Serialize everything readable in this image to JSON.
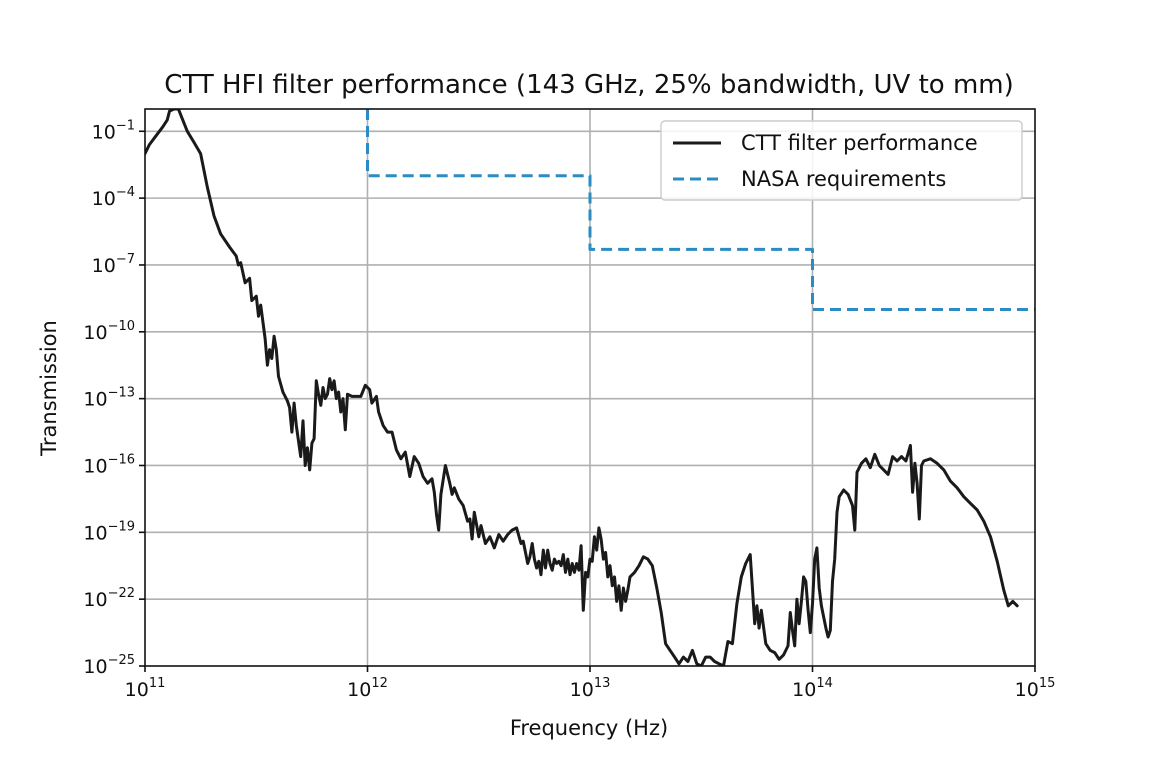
{
  "chart_data": {
    "type": "line",
    "title": "CTT HFI filter performance (143 GHz, 25% bandwidth, UV to mm)",
    "xlabel": "Frequency (Hz)",
    "ylabel": "Transmission",
    "xscale": "log",
    "yscale": "log",
    "xlim_exp": [
      11,
      15
    ],
    "ylim_exp": [
      -25,
      0
    ],
    "grid": true,
    "legend_position": "top-right",
    "x_ticks": [
      {
        "base": "10",
        "exp": "11",
        "value_exp": 11
      },
      {
        "base": "10",
        "exp": "12",
        "value_exp": 12
      },
      {
        "base": "10",
        "exp": "13",
        "value_exp": 13
      },
      {
        "base": "10",
        "exp": "14",
        "value_exp": 14
      },
      {
        "base": "10",
        "exp": "15",
        "value_exp": 15
      }
    ],
    "y_ticks": [
      {
        "base": "10",
        "exp": "−1",
        "value_exp": -1
      },
      {
        "base": "10",
        "exp": "−4",
        "value_exp": -4
      },
      {
        "base": "10",
        "exp": "−7",
        "value_exp": -7
      },
      {
        "base": "10",
        "exp": "−10",
        "value_exp": -10
      },
      {
        "base": "10",
        "exp": "−13",
        "value_exp": -13
      },
      {
        "base": "10",
        "exp": "−16",
        "value_exp": -16
      },
      {
        "base": "10",
        "exp": "−19",
        "value_exp": -19
      },
      {
        "base": "10",
        "exp": "−22",
        "value_exp": -22
      },
      {
        "base": "10",
        "exp": "−25",
        "value_exp": -25
      }
    ],
    "series": [
      {
        "name": "CTT filter performance",
        "color": "#1a1a1a",
        "style": "solid",
        "points_log10": [
          [
            11.0,
            -2.0
          ],
          [
            11.02,
            -1.6
          ],
          [
            11.05,
            -1.2
          ],
          [
            11.08,
            -0.8
          ],
          [
            11.1,
            -0.5
          ],
          [
            11.11,
            -0.1
          ],
          [
            11.13,
            0.0
          ],
          [
            11.15,
            0.0
          ],
          [
            11.17,
            -0.5
          ],
          [
            11.19,
            -1.0
          ],
          [
            11.22,
            -1.5
          ],
          [
            11.25,
            -2.0
          ],
          [
            11.28,
            -3.5
          ],
          [
            11.31,
            -4.8
          ],
          [
            11.34,
            -5.6
          ],
          [
            11.38,
            -6.2
          ],
          [
            11.41,
            -6.6
          ],
          [
            11.42,
            -7.0
          ],
          [
            11.43,
            -6.9
          ],
          [
            11.45,
            -7.8
          ],
          [
            11.47,
            -7.6
          ],
          [
            11.48,
            -8.6
          ],
          [
            11.5,
            -8.4
          ],
          [
            11.51,
            -9.3
          ],
          [
            11.52,
            -8.8
          ],
          [
            11.54,
            -10.3
          ],
          [
            11.55,
            -11.5
          ],
          [
            11.56,
            -10.8
          ],
          [
            11.57,
            -11.2
          ],
          [
            11.58,
            -10.2
          ],
          [
            11.59,
            -10.8
          ],
          [
            11.6,
            -12.0
          ],
          [
            11.62,
            -12.7
          ],
          [
            11.64,
            -13.1
          ],
          [
            11.65,
            -13.4
          ],
          [
            11.66,
            -14.5
          ],
          [
            11.67,
            -13.2
          ],
          [
            11.68,
            -14.2
          ],
          [
            11.7,
            -15.6
          ],
          [
            11.71,
            -14.0
          ],
          [
            11.72,
            -16.0
          ],
          [
            11.73,
            -15.2
          ],
          [
            11.74,
            -16.2
          ],
          [
            11.75,
            -15.0
          ],
          [
            11.76,
            -14.8
          ],
          [
            11.77,
            -12.2
          ],
          [
            11.78,
            -12.8
          ],
          [
            11.79,
            -13.3
          ],
          [
            11.8,
            -12.5
          ],
          [
            11.81,
            -13.0
          ],
          [
            11.82,
            -12.8
          ],
          [
            11.83,
            -12.1
          ],
          [
            11.84,
            -12.6
          ],
          [
            11.85,
            -12.2
          ],
          [
            11.86,
            -13.0
          ],
          [
            11.87,
            -12.7
          ],
          [
            11.88,
            -13.6
          ],
          [
            11.89,
            -13.0
          ],
          [
            11.9,
            -14.4
          ],
          [
            11.91,
            -12.8
          ],
          [
            11.93,
            -12.9
          ],
          [
            11.95,
            -12.9
          ],
          [
            11.97,
            -12.9
          ],
          [
            11.99,
            -12.4
          ],
          [
            12.01,
            -12.6
          ],
          [
            12.02,
            -13.2
          ],
          [
            12.04,
            -12.9
          ],
          [
            12.05,
            -13.6
          ],
          [
            12.07,
            -14.2
          ],
          [
            12.09,
            -14.5
          ],
          [
            12.11,
            -14.5
          ],
          [
            12.13,
            -15.3
          ],
          [
            12.15,
            -15.7
          ],
          [
            12.17,
            -15.4
          ],
          [
            12.19,
            -16.5
          ],
          [
            12.21,
            -15.6
          ],
          [
            12.23,
            -15.9
          ],
          [
            12.25,
            -16.5
          ],
          [
            12.27,
            -16.8
          ],
          [
            12.29,
            -16.6
          ],
          [
            12.3,
            -17.2
          ],
          [
            12.31,
            -18.2
          ],
          [
            12.32,
            -18.9
          ],
          [
            12.33,
            -17.3
          ],
          [
            12.35,
            -16.0
          ],
          [
            12.37,
            -16.8
          ],
          [
            12.38,
            -17.3
          ],
          [
            12.39,
            -17.0
          ],
          [
            12.41,
            -17.5
          ],
          [
            12.43,
            -17.8
          ],
          [
            12.45,
            -18.5
          ],
          [
            12.46,
            -18.4
          ],
          [
            12.47,
            -19.3
          ],
          [
            12.48,
            -18.1
          ],
          [
            12.5,
            -19.2
          ],
          [
            12.51,
            -18.7
          ],
          [
            12.53,
            -19.5
          ],
          [
            12.55,
            -19.2
          ],
          [
            12.57,
            -19.7
          ],
          [
            12.59,
            -19.1
          ],
          [
            12.61,
            -19.4
          ],
          [
            12.63,
            -19.1
          ],
          [
            12.65,
            -18.9
          ],
          [
            12.67,
            -18.8
          ],
          [
            12.69,
            -19.5
          ],
          [
            12.7,
            -19.4
          ],
          [
            12.71,
            -19.9
          ],
          [
            12.72,
            -20.4
          ],
          [
            12.73,
            -20.1
          ],
          [
            12.74,
            -19.5
          ],
          [
            12.75,
            -20.2
          ],
          [
            12.76,
            -20.6
          ],
          [
            12.77,
            -20.3
          ],
          [
            12.78,
            -20.9
          ],
          [
            12.79,
            -19.8
          ],
          [
            12.8,
            -20.6
          ],
          [
            12.81,
            -19.8
          ],
          [
            12.82,
            -20.4
          ],
          [
            12.83,
            -20.7
          ],
          [
            12.84,
            -20.2
          ],
          [
            12.85,
            -20.4
          ],
          [
            12.86,
            -20.3
          ],
          [
            12.87,
            -20.5
          ],
          [
            12.88,
            -20.0
          ],
          [
            12.89,
            -20.8
          ],
          [
            12.9,
            -20.2
          ],
          [
            12.91,
            -20.9
          ],
          [
            12.92,
            -20.4
          ],
          [
            12.93,
            -20.8
          ],
          [
            12.94,
            -20.4
          ],
          [
            12.95,
            -20.7
          ],
          [
            12.96,
            -19.6
          ],
          [
            12.97,
            -22.5
          ],
          [
            12.98,
            -20.8
          ],
          [
            12.99,
            -21.0
          ],
          [
            13.0,
            -20.2
          ],
          [
            13.01,
            -20.3
          ],
          [
            13.02,
            -19.2
          ],
          [
            13.03,
            -19.8
          ],
          [
            13.04,
            -18.8
          ],
          [
            13.05,
            -19.3
          ],
          [
            13.06,
            -20.2
          ],
          [
            13.07,
            -19.9
          ],
          [
            13.08,
            -21.0
          ],
          [
            13.09,
            -20.5
          ],
          [
            13.1,
            -21.4
          ],
          [
            13.11,
            -21.0
          ],
          [
            13.12,
            -22.1
          ],
          [
            13.13,
            -21.4
          ],
          [
            13.14,
            -22.5
          ],
          [
            13.15,
            -21.5
          ],
          [
            13.16,
            -22.1
          ],
          [
            13.17,
            -21.6
          ],
          [
            13.18,
            -21.0
          ],
          [
            13.2,
            -20.8
          ],
          [
            13.22,
            -20.5
          ],
          [
            13.24,
            -20.1
          ],
          [
            13.26,
            -20.2
          ],
          [
            13.28,
            -20.5
          ],
          [
            13.3,
            -21.5
          ],
          [
            13.32,
            -22.6
          ],
          [
            13.34,
            -24.0
          ],
          [
            13.36,
            -24.3
          ],
          [
            13.38,
            -24.6
          ],
          [
            13.4,
            -24.9
          ],
          [
            13.42,
            -24.6
          ],
          [
            13.44,
            -24.8
          ],
          [
            13.46,
            -24.3
          ],
          [
            13.48,
            -24.9
          ],
          [
            13.5,
            -25.0
          ],
          [
            13.52,
            -24.6
          ],
          [
            13.54,
            -24.6
          ],
          [
            13.56,
            -24.8
          ],
          [
            13.58,
            -24.9
          ],
          [
            13.6,
            -25.0
          ],
          [
            13.62,
            -23.9
          ],
          [
            13.64,
            -24.0
          ],
          [
            13.66,
            -22.2
          ],
          [
            13.68,
            -21.0
          ],
          [
            13.7,
            -20.4
          ],
          [
            13.72,
            -20.0
          ],
          [
            13.73,
            -21.5
          ],
          [
            13.74,
            -23.1
          ],
          [
            13.75,
            -22.3
          ],
          [
            13.76,
            -23.3
          ],
          [
            13.77,
            -22.5
          ],
          [
            13.79,
            -24.0
          ],
          [
            13.81,
            -24.3
          ],
          [
            13.83,
            -24.4
          ],
          [
            13.85,
            -24.7
          ],
          [
            13.87,
            -24.5
          ],
          [
            13.89,
            -24.1
          ],
          [
            13.9,
            -22.6
          ],
          [
            13.91,
            -23.4
          ],
          [
            13.92,
            -24.1
          ],
          [
            13.93,
            -22.0
          ],
          [
            13.94,
            -23.1
          ],
          [
            13.95,
            -22.1
          ],
          [
            13.96,
            -21.0
          ],
          [
            13.97,
            -21.2
          ],
          [
            13.98,
            -22.5
          ],
          [
            13.99,
            -23.5
          ],
          [
            14.0,
            -22.2
          ],
          [
            14.01,
            -20.2
          ],
          [
            14.02,
            -19.7
          ],
          [
            14.03,
            -21.5
          ],
          [
            14.04,
            -22.3
          ],
          [
            14.06,
            -23.3
          ],
          [
            14.07,
            -23.7
          ],
          [
            14.08,
            -23.4
          ],
          [
            14.09,
            -21.2
          ],
          [
            14.1,
            -20.2
          ],
          [
            14.11,
            -18.1
          ],
          [
            14.12,
            -17.4
          ],
          [
            14.14,
            -17.1
          ],
          [
            14.16,
            -17.3
          ],
          [
            14.18,
            -17.8
          ],
          [
            14.19,
            -18.9
          ],
          [
            14.2,
            -16.3
          ],
          [
            14.22,
            -15.9
          ],
          [
            14.24,
            -15.7
          ],
          [
            14.26,
            -16.1
          ],
          [
            14.28,
            -15.5
          ],
          [
            14.3,
            -16.0
          ],
          [
            14.32,
            -16.2
          ],
          [
            14.34,
            -16.4
          ],
          [
            14.36,
            -15.6
          ],
          [
            14.38,
            -15.8
          ],
          [
            14.4,
            -15.6
          ],
          [
            14.42,
            -15.8
          ],
          [
            14.44,
            -15.1
          ],
          [
            14.45,
            -17.2
          ],
          [
            14.46,
            -15.9
          ],
          [
            14.47,
            -16.8
          ],
          [
            14.48,
            -18.4
          ],
          [
            14.49,
            -16.0
          ],
          [
            14.5,
            -15.8
          ],
          [
            14.53,
            -15.7
          ],
          [
            14.56,
            -15.9
          ],
          [
            14.59,
            -16.2
          ],
          [
            14.62,
            -16.7
          ],
          [
            14.65,
            -17.0
          ],
          [
            14.68,
            -17.4
          ],
          [
            14.71,
            -17.7
          ],
          [
            14.74,
            -18.0
          ],
          [
            14.77,
            -18.5
          ],
          [
            14.8,
            -19.2
          ],
          [
            14.83,
            -20.3
          ],
          [
            14.86,
            -21.6
          ],
          [
            14.88,
            -22.3
          ],
          [
            14.9,
            -22.1
          ],
          [
            14.92,
            -22.3
          ]
        ]
      },
      {
        "name": "NASA requirements",
        "color": "#2b8cc4",
        "style": "dashed",
        "points_log10": [
          [
            12.0,
            0.0
          ],
          [
            12.0,
            -3.0
          ],
          [
            13.0,
            -3.0
          ],
          [
            13.0,
            -6.3
          ],
          [
            14.0,
            -6.3
          ],
          [
            14.0,
            -9.0
          ],
          [
            15.0,
            -9.0
          ]
        ]
      }
    ]
  }
}
